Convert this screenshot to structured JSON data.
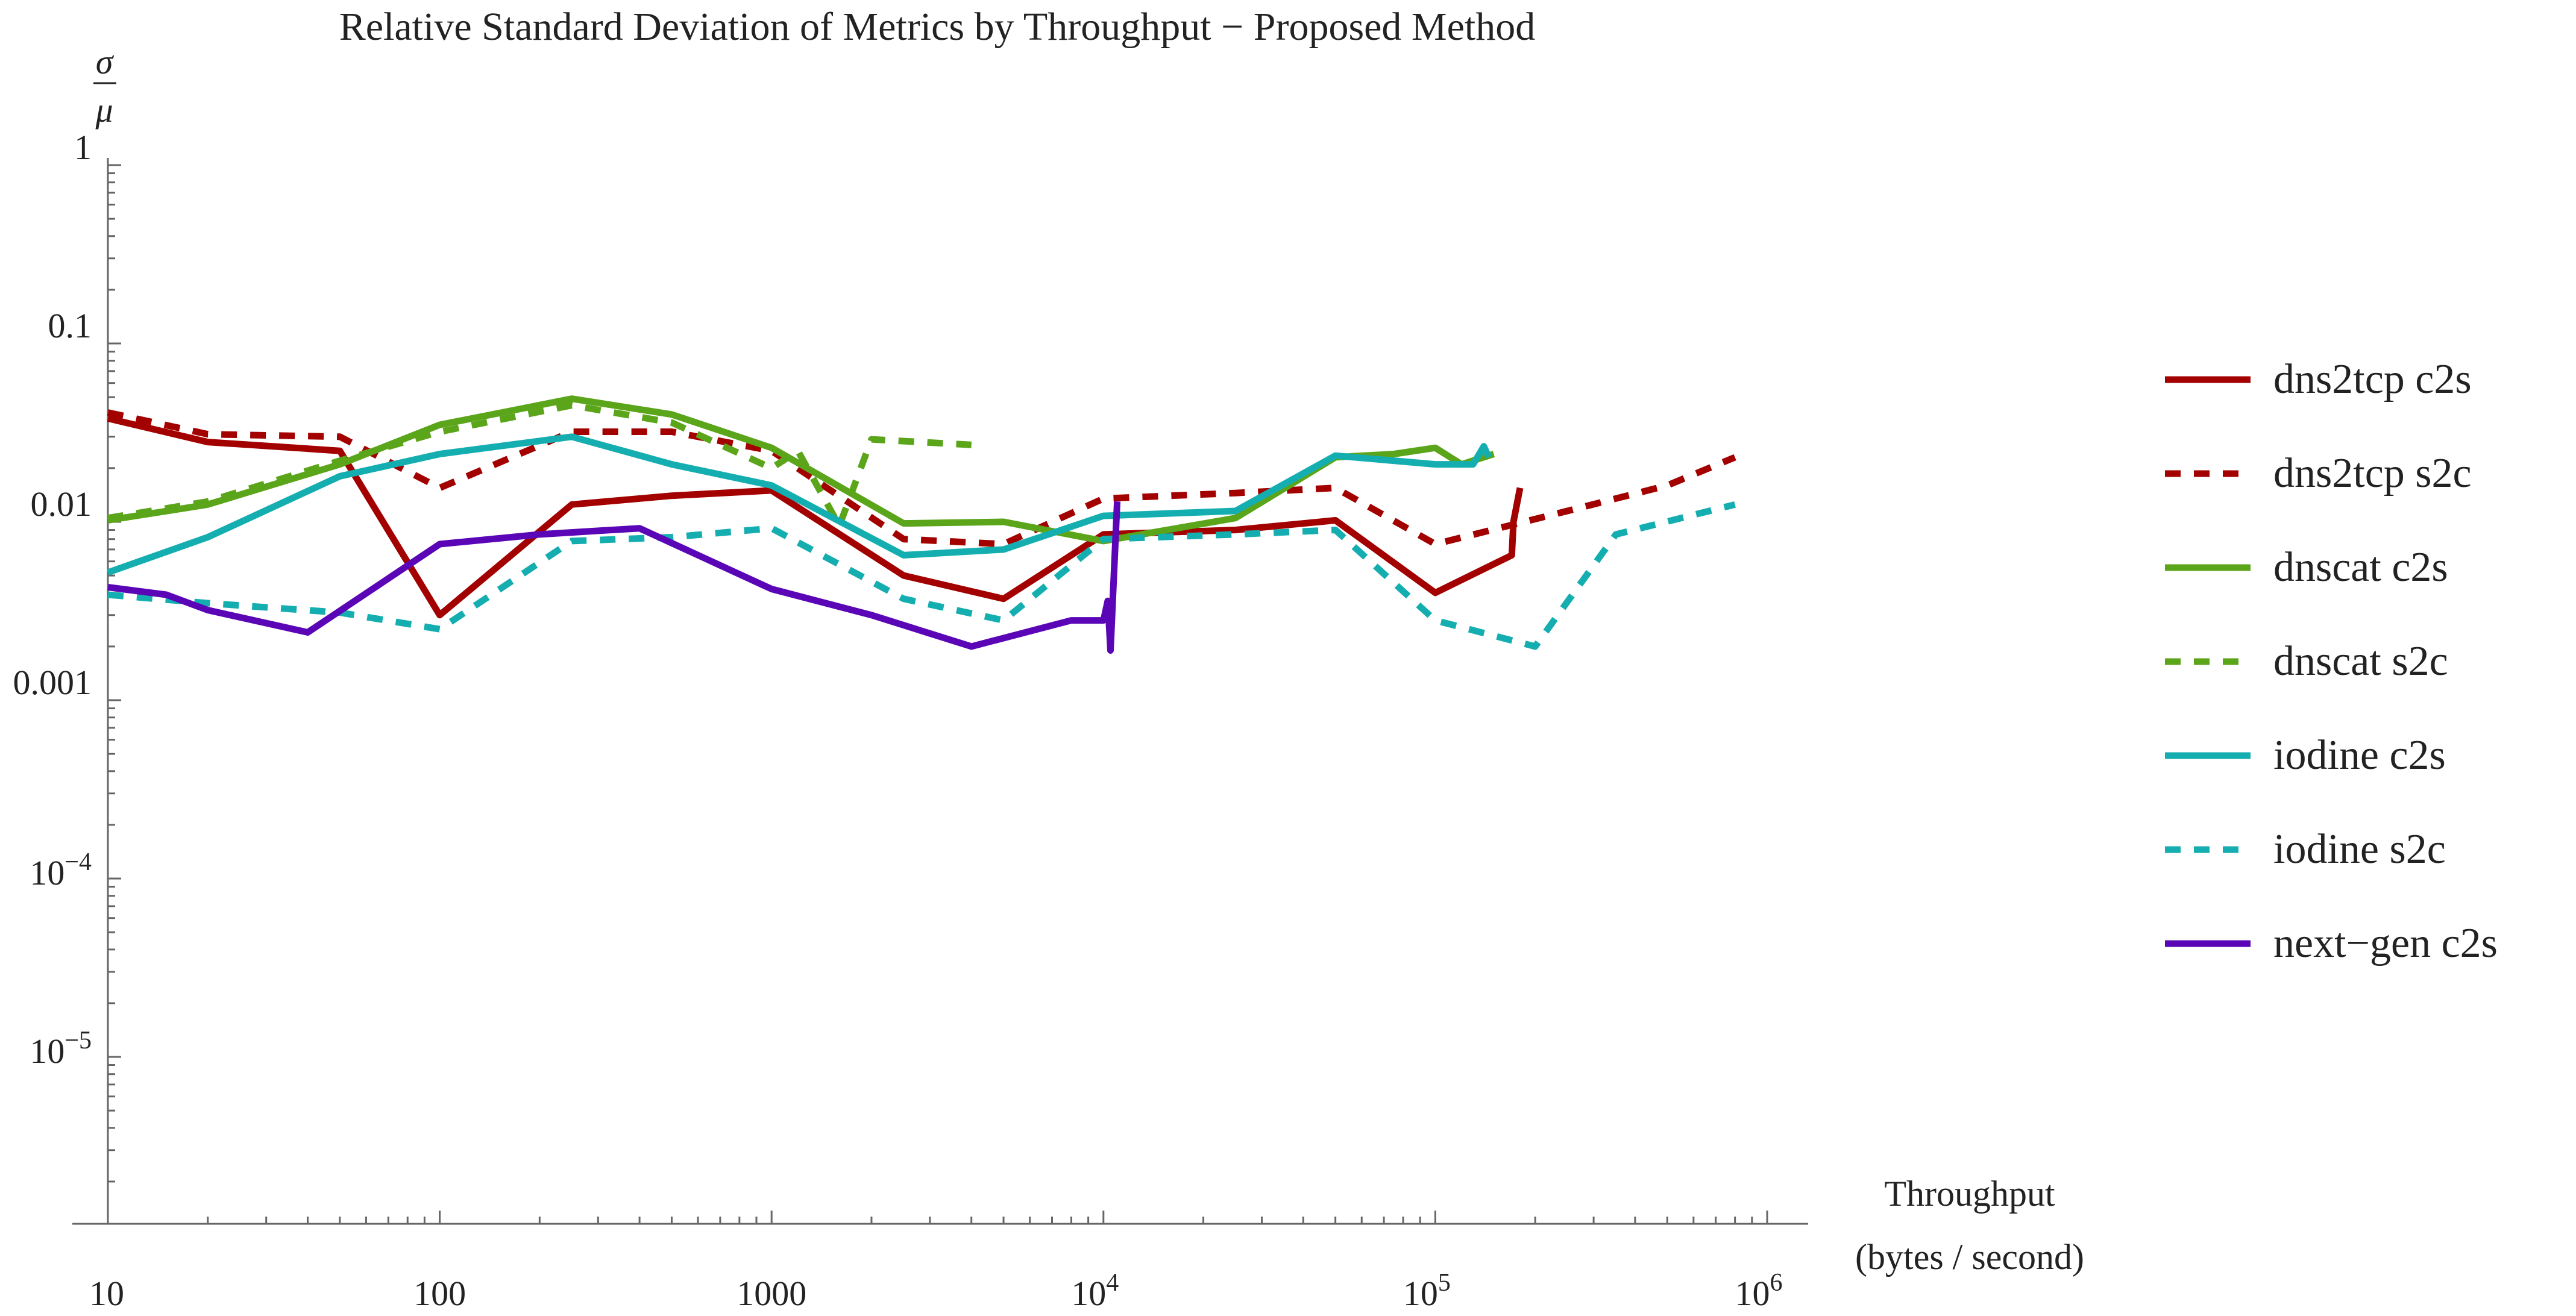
{
  "chart_data": {
    "type": "line",
    "title": "Relative Standard Deviation of Metrics by Throughput − Proposed Method",
    "ylabel": {
      "numerator": "σ",
      "denominator": "μ"
    },
    "xlabel": {
      "line1": "Throughput",
      "line2": "(bytes / second)"
    },
    "x_scale": "log",
    "y_scale": "log",
    "xlim": [
      10,
      1000000
    ],
    "ylim": [
      1.5e-06,
      1
    ],
    "grid": false,
    "legend_position": "right",
    "x_ticks": [
      {
        "value": 10,
        "base": "10",
        "exp": ""
      },
      {
        "value": 100,
        "base": "100",
        "exp": ""
      },
      {
        "value": 1000,
        "base": "1000",
        "exp": ""
      },
      {
        "value": 10000,
        "base": "10",
        "exp": "4"
      },
      {
        "value": 100000,
        "base": "10",
        "exp": "5"
      },
      {
        "value": 1000000,
        "base": "10",
        "exp": "6"
      }
    ],
    "y_ticks": [
      {
        "value": 1,
        "base": "1",
        "exp": ""
      },
      {
        "value": 0.1,
        "base": "0.1",
        "exp": ""
      },
      {
        "value": 0.01,
        "base": "0.01",
        "exp": ""
      },
      {
        "value": 0.001,
        "base": "0.001",
        "exp": ""
      },
      {
        "value": 0.0001,
        "base": "10",
        "exp": "−4"
      },
      {
        "value": 1e-05,
        "base": "10",
        "exp": "−5"
      }
    ],
    "series": [
      {
        "name": "dns2tcp c2s",
        "color": "#a30000",
        "dashed": false,
        "points": [
          [
            10,
            0.038
          ],
          [
            20,
            0.028
          ],
          [
            50,
            0.025
          ],
          [
            100,
            0.003
          ],
          [
            250,
            0.0125
          ],
          [
            500,
            0.014
          ],
          [
            1000,
            0.015
          ],
          [
            2500,
            0.005
          ],
          [
            5000,
            0.0037
          ],
          [
            10000,
            0.0085
          ],
          [
            25000,
            0.009
          ],
          [
            50000,
            0.0102
          ],
          [
            100000,
            0.004
          ],
          [
            170000,
            0.0065
          ],
          [
            172000,
            0.01
          ],
          [
            180000,
            0.0155
          ]
        ]
      },
      {
        "name": "dns2tcp s2c",
        "color": "#a30000",
        "dashed": true,
        "points": [
          [
            10,
            0.041
          ],
          [
            20,
            0.031
          ],
          [
            50,
            0.03
          ],
          [
            100,
            0.0155
          ],
          [
            250,
            0.032
          ],
          [
            500,
            0.032
          ],
          [
            1000,
            0.025
          ],
          [
            2500,
            0.008
          ],
          [
            5000,
            0.0075
          ],
          [
            10000,
            0.0135
          ],
          [
            25000,
            0.0145
          ],
          [
            50000,
            0.0155
          ],
          [
            100000,
            0.0075
          ],
          [
            250000,
            0.0115
          ],
          [
            500000,
            0.016
          ],
          [
            800000,
            0.023
          ]
        ]
      },
      {
        "name": "dnscat c2s",
        "color": "#5ba51a",
        "dashed": false,
        "points": [
          [
            10,
            0.0102
          ],
          [
            20,
            0.0125
          ],
          [
            50,
            0.021
          ],
          [
            100,
            0.035
          ],
          [
            250,
            0.049
          ],
          [
            500,
            0.04
          ],
          [
            1000,
            0.026
          ],
          [
            2500,
            0.0098
          ],
          [
            5000,
            0.01
          ],
          [
            10000,
            0.0078
          ],
          [
            25000,
            0.0105
          ],
          [
            50000,
            0.023
          ],
          [
            75000,
            0.024
          ],
          [
            100000,
            0.026
          ],
          [
            120000,
            0.021
          ],
          [
            150000,
            0.024
          ]
        ]
      },
      {
        "name": "dnscat s2c",
        "color": "#5ba51a",
        "dashed": true,
        "points": [
          [
            10,
            0.0105
          ],
          [
            20,
            0.013
          ],
          [
            50,
            0.022
          ],
          [
            100,
            0.032
          ],
          [
            250,
            0.045
          ],
          [
            500,
            0.036
          ],
          [
            1000,
            0.02
          ],
          [
            1200,
            0.025
          ],
          [
            1600,
            0.0095
          ],
          [
            2000,
            0.029
          ],
          [
            4000,
            0.027
          ]
        ]
      },
      {
        "name": "iodine c2s",
        "color": "#15aeb0",
        "dashed": false,
        "points": [
          [
            10,
            0.0052
          ],
          [
            20,
            0.0082
          ],
          [
            50,
            0.018
          ],
          [
            100,
            0.024
          ],
          [
            250,
            0.03
          ],
          [
            500,
            0.021
          ],
          [
            1000,
            0.016
          ],
          [
            2500,
            0.0065
          ],
          [
            5000,
            0.007
          ],
          [
            10000,
            0.0108
          ],
          [
            25000,
            0.0115
          ],
          [
            50000,
            0.0235
          ],
          [
            100000,
            0.021
          ],
          [
            130000,
            0.021
          ],
          [
            140000,
            0.0265
          ],
          [
            145000,
            0.023
          ]
        ]
      },
      {
        "name": "iodine s2c",
        "color": "#15aeb0",
        "dashed": true,
        "points": [
          [
            10,
            0.0039
          ],
          [
            20,
            0.0035
          ],
          [
            50,
            0.0031
          ],
          [
            100,
            0.0025
          ],
          [
            250,
            0.0078
          ],
          [
            500,
            0.0082
          ],
          [
            1000,
            0.0092
          ],
          [
            2500,
            0.0037
          ],
          [
            5000,
            0.0028
          ],
          [
            10000,
            0.008
          ],
          [
            25000,
            0.0085
          ],
          [
            50000,
            0.009
          ],
          [
            100000,
            0.0028
          ],
          [
            200000,
            0.002
          ],
          [
            350000,
            0.0085
          ],
          [
            800000,
            0.0125
          ]
        ]
      },
      {
        "name": "next−gen c2s",
        "color": "#5a06b6",
        "dashed": false,
        "points": [
          [
            10,
            0.0043
          ],
          [
            15,
            0.0039
          ],
          [
            20,
            0.0032
          ],
          [
            40,
            0.0024
          ],
          [
            100,
            0.0075
          ],
          [
            200,
            0.0085
          ],
          [
            400,
            0.0092
          ],
          [
            1000,
            0.0042
          ],
          [
            2000,
            0.003
          ],
          [
            4000,
            0.002
          ],
          [
            8000,
            0.0028
          ],
          [
            10000,
            0.0028
          ],
          [
            10300,
            0.0036
          ],
          [
            10500,
            0.0019
          ],
          [
            11000,
            0.013
          ]
        ]
      }
    ]
  }
}
